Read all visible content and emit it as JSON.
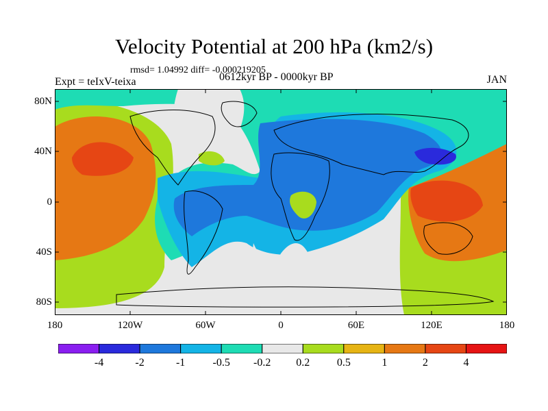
{
  "title": "Velocity Potential at 200 hPa (km2/s)",
  "stats": "rmsd= 1.04992  diff= -0.000219205",
  "experiment": "Expt = teIxV-teixa",
  "period": "0612kyr BP - 0000kyr BP",
  "month": "JAN",
  "map": {
    "projection": "cylindrical equidistant",
    "lon_range": [
      -180,
      180
    ],
    "lat_range": [
      -90,
      90
    ],
    "lat_ticks": [
      "80N",
      "40N",
      "0",
      "40S",
      "80S"
    ],
    "lon_ticks": [
      "180",
      "120W",
      "60W",
      "0",
      "60E",
      "120E",
      "180"
    ],
    "features": [
      "continent-outlines",
      "filled-contours"
    ]
  },
  "colorbar": {
    "colors": [
      "#8a1ef0",
      "#2a2adc",
      "#1e78dc",
      "#14b4e6",
      "#1edcb4",
      "#e8e8e8",
      "#a8dc1e",
      "#e6b414",
      "#e67814",
      "#e64614",
      "#e61414"
    ],
    "labels": [
      "-4",
      "-2",
      "-1",
      "-0.5",
      "-0.2",
      "0.2",
      "0.5",
      "1",
      "2",
      "4"
    ]
  },
  "regions": {
    "pacific_high": "#e64614",
    "east_asia_low": "#2a2adc"
  }
}
